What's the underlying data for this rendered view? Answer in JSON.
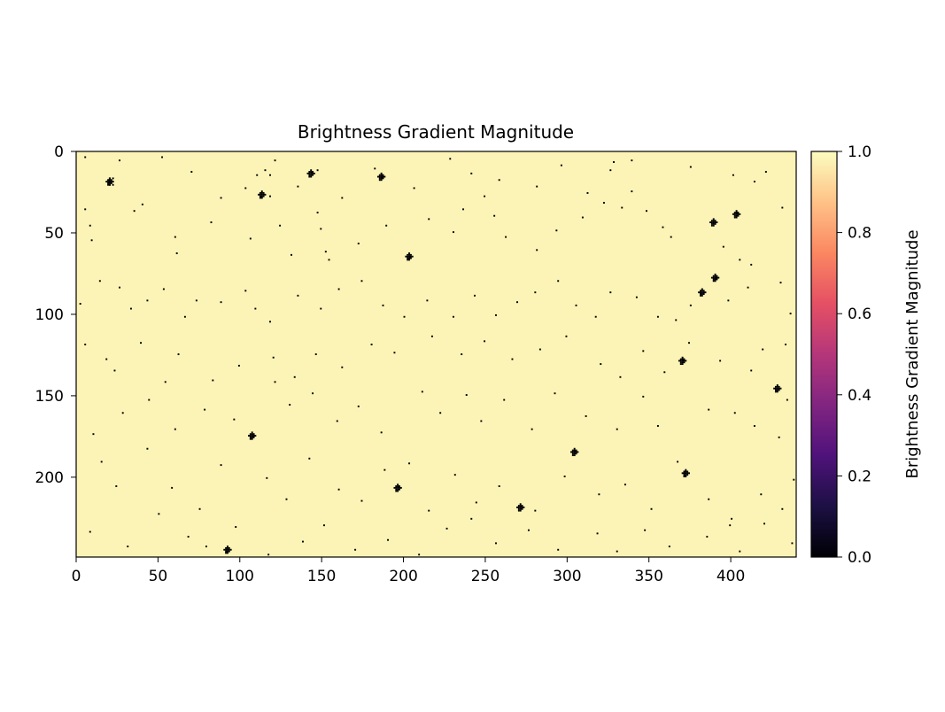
{
  "chart_data": {
    "type": "heatmap",
    "title": "Brightness Gradient Magnitude",
    "xlim": [
      0,
      440
    ],
    "ylim": [
      249,
      0
    ],
    "x_ticks": [
      "0",
      "50",
      "100",
      "150",
      "200",
      "250",
      "300",
      "350",
      "400"
    ],
    "y_ticks": [
      "0",
      "50",
      "100",
      "150",
      "200"
    ],
    "background_value": 0.98,
    "colorbar": {
      "label": "Brightness Gradient Magnitude",
      "colormap": "magma",
      "range": [
        0.0,
        1.0
      ],
      "ticks": [
        "0.0",
        "0.2",
        "0.4",
        "0.6",
        "0.8",
        "1.0"
      ],
      "stops": [
        "#000004",
        "#1c1044",
        "#4f127b",
        "#812581",
        "#b5367a",
        "#e55064",
        "#fb8761",
        "#fec287",
        "#fcfdbf"
      ]
    },
    "clusters_value_0": [
      [
        113,
        26
      ],
      [
        389,
        43
      ],
      [
        403,
        38
      ],
      [
        203,
        64
      ],
      [
        390,
        77
      ],
      [
        382,
        86
      ],
      [
        370,
        128
      ],
      [
        428,
        145
      ],
      [
        107,
        174
      ],
      [
        304,
        184
      ],
      [
        372,
        197
      ],
      [
        196,
        206
      ],
      [
        271,
        218
      ],
      [
        92,
        244
      ],
      [
        20,
        18
      ],
      [
        143,
        13
      ],
      [
        186,
        15
      ]
    ],
    "points_value_0": [
      [
        5,
        3
      ],
      [
        20,
        16
      ],
      [
        20,
        18
      ],
      [
        20,
        20
      ],
      [
        22,
        16
      ],
      [
        22,
        18
      ],
      [
        22,
        20
      ],
      [
        26,
        5
      ],
      [
        52,
        3
      ],
      [
        70,
        12
      ],
      [
        103,
        22
      ],
      [
        110,
        14
      ],
      [
        115,
        11
      ],
      [
        118,
        14
      ],
      [
        121,
        5
      ],
      [
        118,
        27
      ],
      [
        135,
        21
      ],
      [
        147,
        11
      ],
      [
        162,
        28
      ],
      [
        182,
        10
      ],
      [
        206,
        22
      ],
      [
        228,
        4
      ],
      [
        241,
        13
      ],
      [
        258,
        17
      ],
      [
        281,
        21
      ],
      [
        296,
        8
      ],
      [
        312,
        25
      ],
      [
        326,
        11
      ],
      [
        328,
        6
      ],
      [
        339,
        5
      ],
      [
        375,
        9
      ],
      [
        401,
        14
      ],
      [
        421,
        12
      ],
      [
        414,
        18
      ],
      [
        431,
        34
      ],
      [
        5,
        35
      ],
      [
        8,
        45
      ],
      [
        35,
        36
      ],
      [
        40,
        32
      ],
      [
        60,
        52
      ],
      [
        82,
        43
      ],
      [
        88,
        28
      ],
      [
        61,
        62
      ],
      [
        106,
        53
      ],
      [
        124,
        45
      ],
      [
        147,
        37
      ],
      [
        149,
        47
      ],
      [
        131,
        63
      ],
      [
        152,
        61
      ],
      [
        154,
        66
      ],
      [
        172,
        56
      ],
      [
        189,
        45
      ],
      [
        215,
        41
      ],
      [
        230,
        49
      ],
      [
        236,
        35
      ],
      [
        249,
        27
      ],
      [
        255,
        39
      ],
      [
        262,
        52
      ],
      [
        281,
        60
      ],
      [
        293,
        48
      ],
      [
        309,
        40
      ],
      [
        322,
        31
      ],
      [
        333,
        34
      ],
      [
        339,
        24
      ],
      [
        348,
        36
      ],
      [
        358,
        46
      ],
      [
        363,
        52
      ],
      [
        395,
        58
      ],
      [
        405,
        66
      ],
      [
        412,
        69
      ],
      [
        9,
        54
      ],
      [
        2,
        93
      ],
      [
        14,
        79
      ],
      [
        26,
        83
      ],
      [
        33,
        96
      ],
      [
        43,
        91
      ],
      [
        53,
        84
      ],
      [
        66,
        101
      ],
      [
        73,
        91
      ],
      [
        88,
        92
      ],
      [
        103,
        85
      ],
      [
        109,
        96
      ],
      [
        118,
        104
      ],
      [
        135,
        88
      ],
      [
        149,
        96
      ],
      [
        160,
        84
      ],
      [
        174,
        79
      ],
      [
        187,
        94
      ],
      [
        200,
        101
      ],
      [
        214,
        91
      ],
      [
        230,
        101
      ],
      [
        243,
        88
      ],
      [
        256,
        100
      ],
      [
        269,
        92
      ],
      [
        280,
        86
      ],
      [
        294,
        79
      ],
      [
        305,
        94
      ],
      [
        317,
        101
      ],
      [
        326,
        86
      ],
      [
        342,
        89
      ],
      [
        355,
        101
      ],
      [
        366,
        103
      ],
      [
        375,
        94
      ],
      [
        398,
        91
      ],
      [
        410,
        83
      ],
      [
        430,
        80
      ],
      [
        436,
        99
      ],
      [
        5,
        118
      ],
      [
        18,
        127
      ],
      [
        23,
        134
      ],
      [
        39,
        117
      ],
      [
        54,
        141
      ],
      [
        62,
        124
      ],
      [
        83,
        140
      ],
      [
        99,
        131
      ],
      [
        120,
        126
      ],
      [
        133,
        138
      ],
      [
        146,
        124
      ],
      [
        162,
        132
      ],
      [
        180,
        118
      ],
      [
        194,
        123
      ],
      [
        217,
        113
      ],
      [
        235,
        124
      ],
      [
        249,
        116
      ],
      [
        266,
        127
      ],
      [
        283,
        121
      ],
      [
        299,
        113
      ],
      [
        320,
        130
      ],
      [
        332,
        138
      ],
      [
        346,
        122
      ],
      [
        359,
        135
      ],
      [
        374,
        117
      ],
      [
        393,
        128
      ],
      [
        412,
        134
      ],
      [
        419,
        121
      ],
      [
        433,
        118
      ],
      [
        10,
        173
      ],
      [
        28,
        160
      ],
      [
        44,
        152
      ],
      [
        60,
        170
      ],
      [
        78,
        158
      ],
      [
        96,
        164
      ],
      [
        121,
        141
      ],
      [
        130,
        155
      ],
      [
        144,
        148
      ],
      [
        159,
        165
      ],
      [
        172,
        156
      ],
      [
        186,
        172
      ],
      [
        211,
        147
      ],
      [
        222,
        160
      ],
      [
        238,
        149
      ],
      [
        247,
        165
      ],
      [
        261,
        152
      ],
      [
        278,
        170
      ],
      [
        292,
        148
      ],
      [
        311,
        162
      ],
      [
        330,
        170
      ],
      [
        346,
        150
      ],
      [
        355,
        168
      ],
      [
        386,
        158
      ],
      [
        402,
        160
      ],
      [
        414,
        168
      ],
      [
        434,
        152
      ],
      [
        429,
        175
      ],
      [
        15,
        190
      ],
      [
        24,
        205
      ],
      [
        43,
        182
      ],
      [
        58,
        206
      ],
      [
        75,
        219
      ],
      [
        88,
        192
      ],
      [
        116,
        200
      ],
      [
        128,
        213
      ],
      [
        142,
        188
      ],
      [
        160,
        207
      ],
      [
        174,
        214
      ],
      [
        188,
        195
      ],
      [
        203,
        191
      ],
      [
        215,
        220
      ],
      [
        231,
        198
      ],
      [
        244,
        215
      ],
      [
        258,
        205
      ],
      [
        280,
        220
      ],
      [
        298,
        199
      ],
      [
        319,
        210
      ],
      [
        335,
        204
      ],
      [
        351,
        219
      ],
      [
        367,
        190
      ],
      [
        386,
        213
      ],
      [
        400,
        225
      ],
      [
        418,
        210
      ],
      [
        438,
        201
      ],
      [
        8,
        233
      ],
      [
        31,
        242
      ],
      [
        50,
        222
      ],
      [
        68,
        236
      ],
      [
        79,
        242
      ],
      [
        97,
        230
      ],
      [
        117,
        247
      ],
      [
        138,
        239
      ],
      [
        151,
        229
      ],
      [
        170,
        244
      ],
      [
        190,
        238
      ],
      [
        209,
        247
      ],
      [
        226,
        231
      ],
      [
        241,
        225
      ],
      [
        256,
        240
      ],
      [
        276,
        232
      ],
      [
        294,
        244
      ],
      [
        318,
        234
      ],
      [
        330,
        245
      ],
      [
        347,
        232
      ],
      [
        362,
        242
      ],
      [
        385,
        236
      ],
      [
        399,
        229
      ],
      [
        405,
        245
      ],
      [
        420,
        228
      ],
      [
        431,
        219
      ],
      [
        437,
        240
      ]
    ]
  }
}
